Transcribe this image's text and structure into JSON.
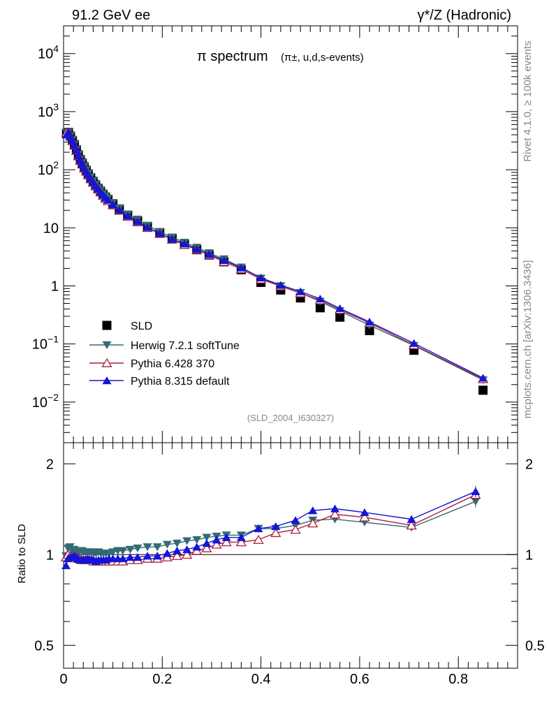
{
  "header": {
    "left": "91.2 GeV ee",
    "right": "γ*/Z (Hadronic)"
  },
  "side_labels": {
    "top": "Rivet 4.1.0, ≥ 100k events",
    "bottom": "mcplots.cern.ch [arXiv:1306.3436]"
  },
  "chart_data": {
    "type": "line",
    "title": "π spectrum",
    "title_sub": "(π±, u,d,s-events)",
    "analysis_tag": "(SLD_2004_I630327)",
    "xlabel": "",
    "ylabel": "",
    "ratio_ylabel": "Ratio to SLD",
    "xlim": [
      0,
      0.92
    ],
    "ylim": [
      0.002,
      30000
    ],
    "yscale": "log",
    "ratio_ylim": [
      0.42,
      2.35
    ],
    "x_ticks": [
      0,
      0.2,
      0.4,
      0.6,
      0.8
    ],
    "x_tick_labels": [
      "0",
      "0.2",
      "0.4",
      "0.6",
      "0.8"
    ],
    "y_tick_labels": [
      "10^-2",
      "10^-1",
      "1",
      "10",
      "10^2",
      "10^3",
      "10^4"
    ],
    "ratio_ticks": [
      0.5,
      1,
      2
    ],
    "ratio_tick_labels": [
      "0.5",
      "1",
      "2"
    ],
    "x": [
      0.006,
      0.01,
      0.014,
      0.018,
      0.022,
      0.026,
      0.03,
      0.034,
      0.038,
      0.042,
      0.046,
      0.05,
      0.055,
      0.06,
      0.065,
      0.07,
      0.075,
      0.08,
      0.085,
      0.09,
      0.1,
      0.113,
      0.13,
      0.15,
      0.17,
      0.195,
      0.22,
      0.245,
      0.27,
      0.295,
      0.325,
      0.36,
      0.4,
      0.44,
      0.48,
      0.52,
      0.56,
      0.62,
      0.71,
      0.85
    ],
    "series": [
      {
        "name": "SLD",
        "color": "#000000",
        "marker": "square",
        "values": [
          420,
          440,
          380,
          320,
          270,
          220,
          180,
          150,
          130,
          112,
          98,
          85,
          73,
          63,
          55,
          48,
          43,
          38,
          34,
          31,
          26,
          21,
          16.5,
          13.2,
          10.5,
          8.2,
          6.5,
          5.2,
          4.2,
          3.4,
          2.6,
          1.9,
          1.15,
          0.85,
          0.62,
          0.42,
          0.29,
          0.17,
          0.078,
          0.016
        ]
      },
      {
        "name": "Herwig 7.2.1 softTune",
        "color": "#336b75",
        "marker": "triangle-down",
        "values": [
          440,
          450,
          390,
          330,
          275,
          225,
          184,
          153,
          133,
          114,
          100,
          87,
          75,
          64,
          56,
          49,
          44,
          39,
          35,
          32,
          27,
          22,
          17,
          14,
          11,
          8.6,
          6.9,
          5.6,
          4.6,
          3.7,
          2.9,
          2.1,
          1.35,
          1.0,
          0.76,
          0.54,
          0.37,
          0.21,
          0.094,
          0.024
        ]
      },
      {
        "name": "Pythia 6.428 370",
        "color": "#a8203c",
        "marker": "triangle-up-open",
        "values": [
          430,
          440,
          375,
          315,
          262,
          213,
          172,
          143,
          124,
          106,
          93,
          81,
          69,
          60,
          52,
          46,
          41,
          36,
          32,
          29,
          24.5,
          19.8,
          15.6,
          12.5,
          10.0,
          7.9,
          6.3,
          5.1,
          4.2,
          3.4,
          2.6,
          1.95,
          1.3,
          0.99,
          0.75,
          0.57,
          0.39,
          0.23,
          0.096,
          0.025
        ]
      },
      {
        "name": "Pythia 8.315 default",
        "color": "#1515d6",
        "marker": "triangle-up",
        "values": [
          400,
          440,
          375,
          318,
          265,
          216,
          174,
          145,
          125,
          108,
          94,
          82,
          70,
          61,
          53,
          47,
          41,
          37,
          33,
          30,
          25,
          20.2,
          16,
          12.8,
          10.2,
          8.0,
          6.4,
          5.3,
          4.3,
          3.5,
          2.75,
          2.05,
          1.38,
          1.03,
          0.8,
          0.6,
          0.41,
          0.24,
          0.103,
          0.026
        ]
      }
    ],
    "ratio_x": [
      0.005,
      0.009,
      0.013,
      0.017,
      0.021,
      0.025,
      0.029,
      0.033,
      0.037,
      0.041,
      0.045,
      0.049,
      0.053,
      0.057,
      0.061,
      0.066,
      0.071,
      0.076,
      0.081,
      0.086,
      0.092,
      0.1,
      0.11,
      0.12,
      0.135,
      0.15,
      0.17,
      0.19,
      0.21,
      0.23,
      0.25,
      0.27,
      0.29,
      0.31,
      0.33,
      0.36,
      0.395,
      0.43,
      0.47,
      0.505,
      0.55,
      0.61,
      0.705,
      0.835
    ],
    "ratio_series": [
      {
        "name": "Herwig 7.2.1 softTune",
        "values": [
          0.99,
          1.05,
          1.06,
          1.03,
          1.04,
          1.02,
          1.02,
          1.03,
          1.03,
          1.02,
          1.02,
          1.02,
          1.02,
          1.02,
          1.01,
          1.01,
          1.02,
          1.01,
          1.01,
          1.01,
          1.01,
          1.02,
          1.03,
          1.03,
          1.04,
          1.05,
          1.06,
          1.06,
          1.08,
          1.09,
          1.11,
          1.12,
          1.14,
          1.15,
          1.16,
          1.16,
          1.22,
          1.22,
          1.25,
          1.3,
          1.31,
          1.28,
          1.23,
          1.5
        ]
      },
      {
        "name": "Pythia 6.428 370",
        "values": [
          0.98,
          1.0,
          0.99,
          0.98,
          0.98,
          0.98,
          0.97,
          0.97,
          0.96,
          0.96,
          0.96,
          0.96,
          0.96,
          0.96,
          0.95,
          0.95,
          0.95,
          0.95,
          0.95,
          0.95,
          0.95,
          0.95,
          0.95,
          0.95,
          0.96,
          0.96,
          0.97,
          0.97,
          0.98,
          0.99,
          1.0,
          1.03,
          1.05,
          1.08,
          1.1,
          1.1,
          1.12,
          1.18,
          1.21,
          1.27,
          1.36,
          1.33,
          1.25,
          1.58
        ]
      },
      {
        "name": "Pythia 8.315 default",
        "values": [
          0.92,
          0.97,
          0.98,
          0.98,
          0.99,
          0.98,
          0.97,
          0.96,
          0.96,
          0.96,
          0.96,
          0.97,
          0.96,
          0.96,
          0.96,
          0.95,
          0.96,
          0.96,
          0.96,
          0.96,
          0.97,
          0.97,
          0.97,
          0.97,
          0.98,
          0.98,
          0.99,
          0.99,
          1.01,
          1.03,
          1.04,
          1.06,
          1.09,
          1.12,
          1.14,
          1.14,
          1.22,
          1.24,
          1.3,
          1.4,
          1.42,
          1.38,
          1.31,
          1.62
        ]
      }
    ]
  }
}
